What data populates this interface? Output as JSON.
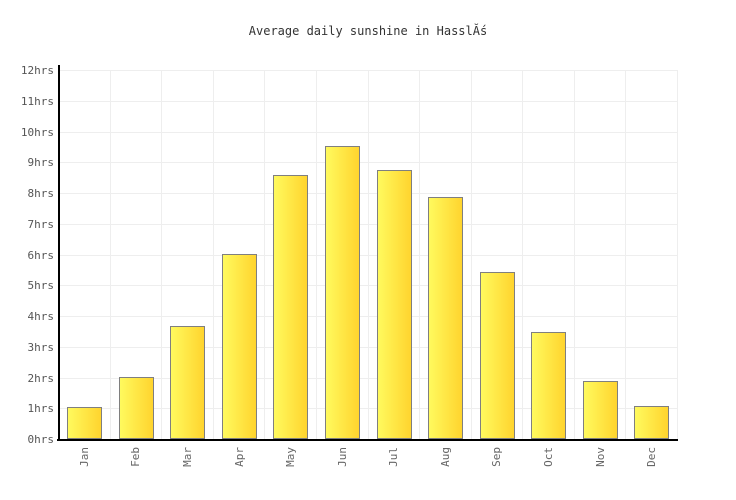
{
  "title": "Average daily sunshine in HasslĂś",
  "chart_data": {
    "type": "bar",
    "title": "Average daily sunshine in HasslĂś",
    "categories": [
      "Jan",
      "Feb",
      "Mar",
      "Apr",
      "May",
      "Jun",
      "Jul",
      "Aug",
      "Sep",
      "Oct",
      "Nov",
      "Dec"
    ],
    "values": [
      1.0,
      2.0,
      3.65,
      6.0,
      8.55,
      9.5,
      8.7,
      7.85,
      5.4,
      3.45,
      1.85,
      1.05
    ],
    "unit": "hrs",
    "xlabel": "",
    "ylabel": "",
    "ylim": [
      0,
      12
    ],
    "y_tick_step": 1,
    "y_tick_labels": [
      "0hrs",
      "1hrs",
      "2hrs",
      "3hrs",
      "4hrs",
      "5hrs",
      "6hrs",
      "7hrs",
      "8hrs",
      "9hrs",
      "10hrs",
      "11hrs",
      "12hrs"
    ],
    "grid": true,
    "legend": false,
    "colors": {
      "bar_gradient_left": "#fffa5e",
      "bar_gradient_right": "#ffd42e",
      "bar_border": "#7f7f7f",
      "gridline": "#eeeeee",
      "axis": "#000000",
      "tick_label": "#555555",
      "title_text": "#333333"
    }
  }
}
